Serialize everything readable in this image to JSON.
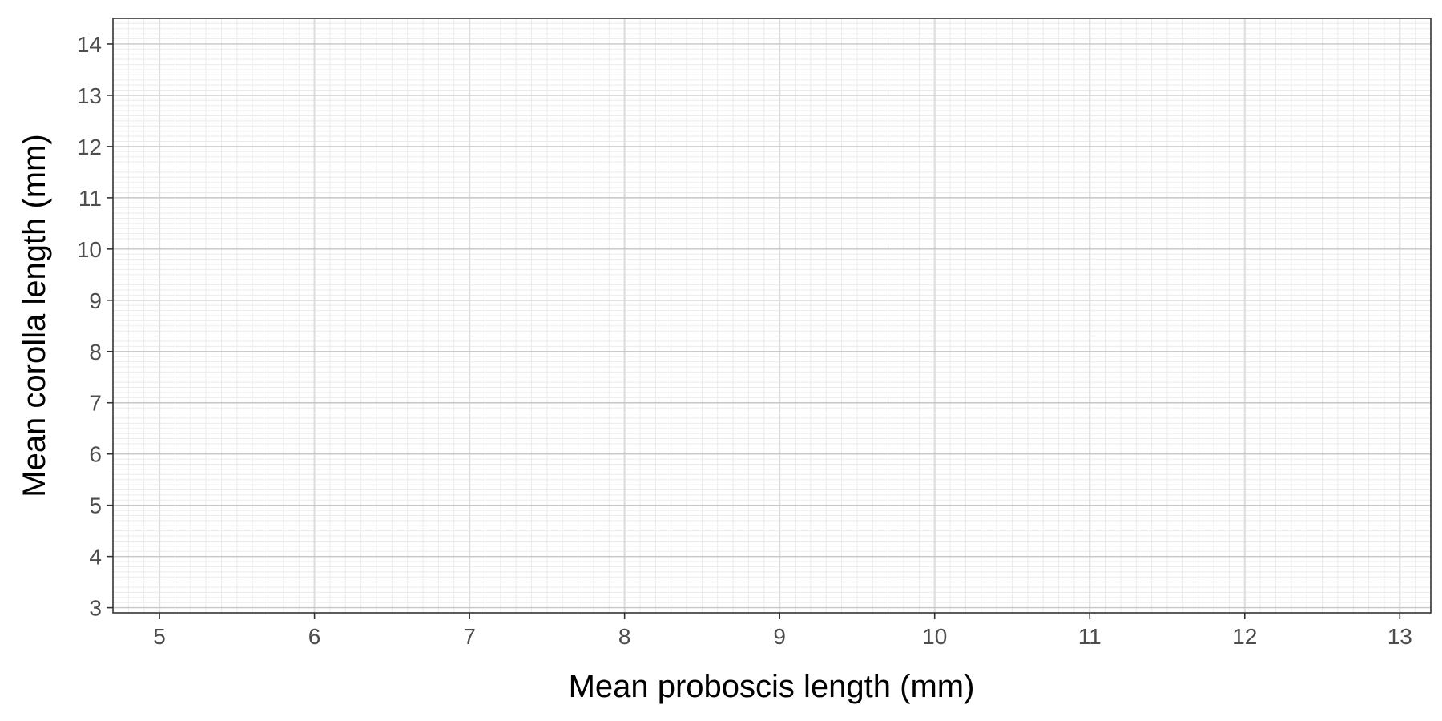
{
  "chart_data": {
    "type": "scatter",
    "title": "",
    "xlabel": "Mean proboscis length (mm)",
    "ylabel": "Mean corolla length (mm)",
    "xlim": [
      4.7,
      13.2
    ],
    "ylim": [
      2.9,
      14.5
    ],
    "x_ticks": [
      5,
      6,
      7,
      8,
      9,
      10,
      11,
      12,
      13
    ],
    "y_ticks": [
      3,
      4,
      5,
      6,
      7,
      8,
      9,
      10,
      11,
      12,
      13,
      14
    ],
    "x_minor_step": 0.1,
    "y_minor_step": 0.1,
    "grid": true,
    "series": [
      {
        "x": [],
        "y": []
      }
    ]
  }
}
